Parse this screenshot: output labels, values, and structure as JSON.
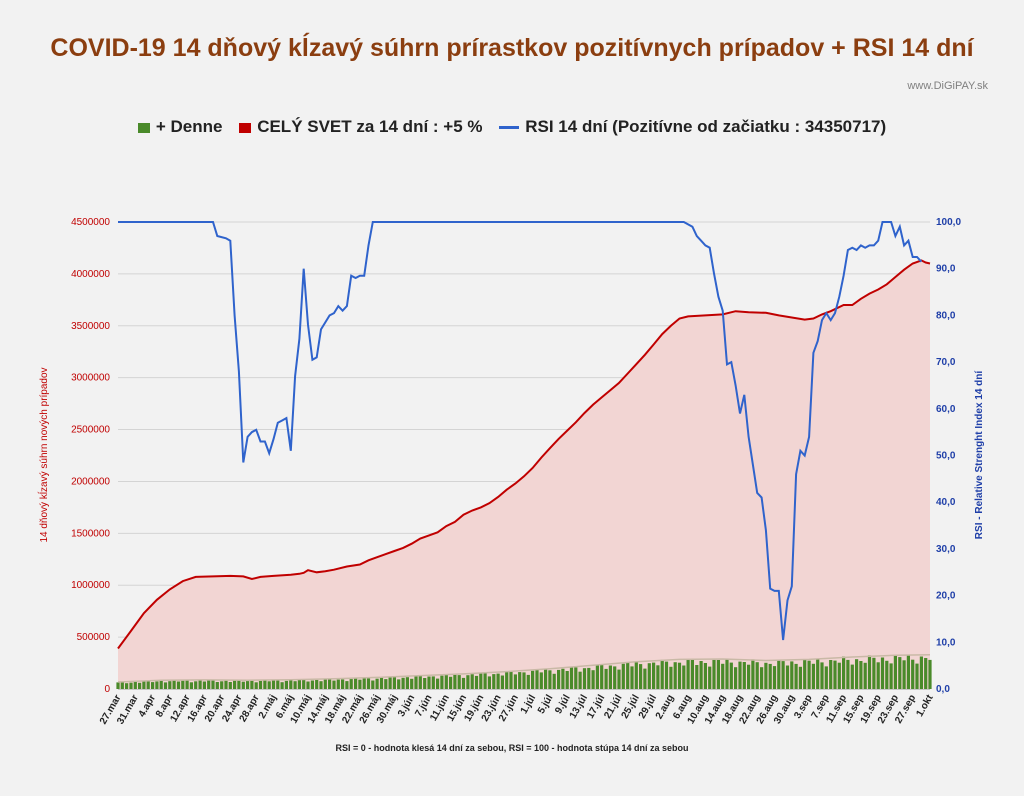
{
  "header": {
    "title": "COVID-19 14 dňový kĺzavý súhrn prírastkov pozitívnych prípadov + RSI 14 dní",
    "watermark": "www.DiGiPAY.sk"
  },
  "legend": {
    "daily": "+ Denne",
    "world": "CELÝ SVET za 14 dní : +5 %",
    "rsi": "RSI 14 dní (Pozitívne od začiatku : 34350717)"
  },
  "footnote": "RSI = 0 - hodnota klesá 14 dní za sebou, RSI = 100 - hodnota stúpa 14 dní za sebou",
  "colors": {
    "daily": "#4a8a2a",
    "world": "#c00000",
    "world_fill": "#f2d5d3",
    "rsi": "#2f63cc",
    "daily_trend": "#c9b9a6"
  },
  "chart_data": {
    "type": "line",
    "xlabel": "",
    "ylabel": "14 dňový kĺzavý súhrn nových prípadov",
    "ylabel_right": "RSI - Relative Strenght Index 14 dní",
    "ylim": [
      0,
      4500000
    ],
    "ylim_right": [
      0,
      100
    ],
    "yticks_left": [
      "0",
      "500000",
      "1000000",
      "1500000",
      "2000000",
      "2500000",
      "3000000",
      "3500000",
      "4000000",
      "4500000"
    ],
    "yticks_right": [
      "0,0",
      "10,0",
      "20,0",
      "30,0",
      "40,0",
      "50,0",
      "60,0",
      "70,0",
      "80,0",
      "90,0",
      "100,0"
    ],
    "x_tick_labels": [
      "27.mar",
      "31.mar",
      "4.apr",
      "8.apr",
      "12.apr",
      "16.apr",
      "20.apr",
      "24.apr",
      "28.apr",
      "2.máj",
      "6.máj",
      "10.máj",
      "14.máj",
      "18.máj",
      "22.máj",
      "26.máj",
      "30.máj",
      "3.jún",
      "7.jún",
      "11.jún",
      "15.jún",
      "19.jún",
      "23.jún",
      "27.jún",
      "1.júl",
      "5.júl",
      "9.júl",
      "13.júl",
      "17.júl",
      "21.júl",
      "25.júl",
      "29.júl",
      "2.aug",
      "6.aug",
      "10.aug",
      "14.aug",
      "18.aug",
      "22.aug",
      "26.aug",
      "30.aug",
      "3.sep",
      "7.sep",
      "11.sep",
      "15.sep",
      "19.sep",
      "23.sep",
      "27.sep",
      "1.okt"
    ],
    "x_range_days": [
      0,
      188
    ],
    "grid": true,
    "legend_position": "top",
    "series": [
      {
        "name": "CELÝ SVET za 14 dní : +5 %",
        "axis": "left",
        "points": [
          [
            0,
            390000
          ],
          [
            3,
            560000
          ],
          [
            6,
            730000
          ],
          [
            9,
            860000
          ],
          [
            12,
            960000
          ],
          [
            15,
            1040000
          ],
          [
            18,
            1080000
          ],
          [
            22,
            1085000
          ],
          [
            26,
            1090000
          ],
          [
            29,
            1085000
          ],
          [
            31,
            1060000
          ],
          [
            33,
            1080000
          ],
          [
            36,
            1090000
          ],
          [
            40,
            1100000
          ],
          [
            42,
            1110000
          ],
          [
            43,
            1120000
          ],
          [
            44,
            1145000
          ],
          [
            46,
            1125000
          ],
          [
            48,
            1135000
          ],
          [
            50,
            1150000
          ],
          [
            53,
            1180000
          ],
          [
            56,
            1200000
          ],
          [
            58,
            1240000
          ],
          [
            60,
            1270000
          ],
          [
            62,
            1300000
          ],
          [
            64,
            1330000
          ],
          [
            66,
            1360000
          ],
          [
            68,
            1400000
          ],
          [
            70,
            1450000
          ],
          [
            72,
            1480000
          ],
          [
            74,
            1510000
          ],
          [
            76,
            1570000
          ],
          [
            78,
            1610000
          ],
          [
            80,
            1680000
          ],
          [
            82,
            1720000
          ],
          [
            84,
            1750000
          ],
          [
            86,
            1790000
          ],
          [
            88,
            1850000
          ],
          [
            90,
            1920000
          ],
          [
            92,
            1980000
          ],
          [
            94,
            2050000
          ],
          [
            96,
            2130000
          ],
          [
            98,
            2230000
          ],
          [
            100,
            2320000
          ],
          [
            102,
            2410000
          ],
          [
            104,
            2490000
          ],
          [
            106,
            2570000
          ],
          [
            108,
            2660000
          ],
          [
            110,
            2740000
          ],
          [
            112,
            2810000
          ],
          [
            114,
            2880000
          ],
          [
            116,
            2950000
          ],
          [
            118,
            3040000
          ],
          [
            120,
            3130000
          ],
          [
            122,
            3220000
          ],
          [
            124,
            3320000
          ],
          [
            126,
            3420000
          ],
          [
            128,
            3500000
          ],
          [
            130,
            3570000
          ],
          [
            132,
            3590000
          ],
          [
            136,
            3600000
          ],
          [
            140,
            3610000
          ],
          [
            143,
            3640000
          ],
          [
            146,
            3630000
          ],
          [
            150,
            3625000
          ],
          [
            153,
            3600000
          ],
          [
            156,
            3580000
          ],
          [
            159,
            3560000
          ],
          [
            161,
            3570000
          ],
          [
            163,
            3610000
          ],
          [
            165,
            3640000
          ],
          [
            168,
            3700000
          ],
          [
            170,
            3700000
          ],
          [
            172,
            3760000
          ],
          [
            174,
            3810000
          ],
          [
            176,
            3850000
          ],
          [
            178,
            3900000
          ],
          [
            180,
            3970000
          ],
          [
            182,
            4040000
          ],
          [
            184,
            4100000
          ],
          [
            186,
            4130000
          ],
          [
            187,
            4110000
          ],
          [
            188,
            4100000
          ]
        ]
      },
      {
        "name": "RSI 14 dní (Pozitívne od začiatku : 34350717)",
        "axis": "right",
        "points": [
          [
            0,
            100
          ],
          [
            22,
            100
          ],
          [
            23,
            97
          ],
          [
            25,
            96.5
          ],
          [
            26,
            96
          ],
          [
            27,
            80
          ],
          [
            28,
            68
          ],
          [
            29,
            48.5
          ],
          [
            30,
            54
          ],
          [
            31,
            55
          ],
          [
            32,
            55.5
          ],
          [
            33,
            53
          ],
          [
            34,
            53
          ],
          [
            35,
            50.5
          ],
          [
            36,
            53.5
          ],
          [
            37,
            57
          ],
          [
            38,
            57.5
          ],
          [
            39,
            58
          ],
          [
            40,
            51
          ],
          [
            41,
            67
          ],
          [
            42,
            75
          ],
          [
            43,
            90
          ],
          [
            44,
            78
          ],
          [
            45,
            70.5
          ],
          [
            46,
            71
          ],
          [
            47,
            77
          ],
          [
            48,
            78.5
          ],
          [
            49,
            80
          ],
          [
            50,
            80.5
          ],
          [
            51,
            82
          ],
          [
            52,
            81
          ],
          [
            53,
            82
          ],
          [
            54,
            88.5
          ],
          [
            55,
            88
          ],
          [
            56,
            88.5
          ],
          [
            57,
            88.5
          ],
          [
            58,
            95
          ],
          [
            59,
            100
          ],
          [
            131,
            100
          ],
          [
            133,
            99
          ],
          [
            134,
            97
          ],
          [
            135,
            96
          ],
          [
            136,
            95
          ],
          [
            137,
            94.5
          ],
          [
            138,
            89
          ],
          [
            139,
            84
          ],
          [
            140,
            81
          ],
          [
            141,
            69.5
          ],
          [
            142,
            70
          ],
          [
            143,
            65
          ],
          [
            144,
            59
          ],
          [
            145,
            63
          ],
          [
            146,
            54
          ],
          [
            147,
            48
          ],
          [
            148,
            42
          ],
          [
            149,
            41
          ],
          [
            150,
            34
          ],
          [
            151,
            21.5
          ],
          [
            152,
            21
          ],
          [
            153,
            21
          ],
          [
            154,
            10.5
          ],
          [
            155,
            19
          ],
          [
            156,
            22
          ],
          [
            157,
            46
          ],
          [
            158,
            51
          ],
          [
            159,
            50
          ],
          [
            160,
            54
          ],
          [
            161,
            72
          ],
          [
            162,
            74.5
          ],
          [
            163,
            79
          ],
          [
            164,
            80.5
          ],
          [
            165,
            79
          ],
          [
            166,
            80.5
          ],
          [
            167,
            84
          ],
          [
            168,
            88.5
          ],
          [
            169,
            94
          ],
          [
            170,
            94.5
          ],
          [
            171,
            94
          ],
          [
            172,
            95
          ],
          [
            173,
            94.5
          ],
          [
            174,
            95
          ],
          [
            175,
            95
          ],
          [
            176,
            96
          ],
          [
            177,
            100
          ],
          [
            179,
            100
          ],
          [
            180,
            97
          ],
          [
            181,
            99
          ],
          [
            182,
            95
          ],
          [
            183,
            96
          ],
          [
            184,
            92.5
          ],
          [
            185,
            92.5
          ],
          [
            186,
            91.5
          ]
        ]
      },
      {
        "name": "+ Denne",
        "axis": "left",
        "type": "bar",
        "points": [
          [
            0,
            60000
          ],
          [
            10,
            75000
          ],
          [
            20,
            78000
          ],
          [
            30,
            76000
          ],
          [
            40,
            80000
          ],
          [
            50,
            88000
          ],
          [
            60,
            100000
          ],
          [
            70,
            115000
          ],
          [
            80,
            130000
          ],
          [
            90,
            150000
          ],
          [
            100,
            175000
          ],
          [
            110,
            205000
          ],
          [
            120,
            235000
          ],
          [
            130,
            255000
          ],
          [
            140,
            258000
          ],
          [
            150,
            245000
          ],
          [
            160,
            255000
          ],
          [
            170,
            275000
          ],
          [
            180,
            290000
          ],
          [
            188,
            295000
          ]
        ]
      }
    ]
  }
}
